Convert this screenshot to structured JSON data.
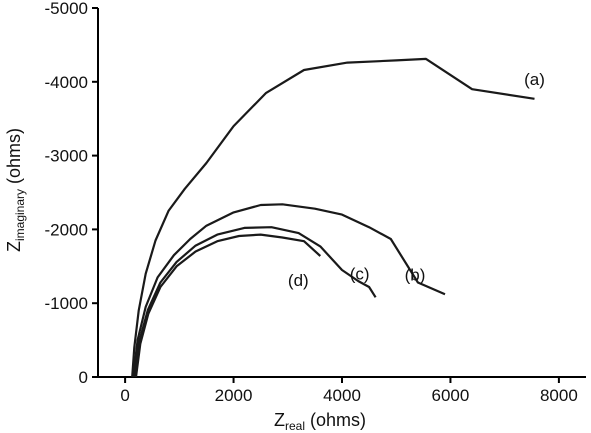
{
  "chart_data": {
    "type": "line",
    "xlabel": {
      "main": "Z",
      "sub": "real",
      "rest": " (ohms)"
    },
    "ylabel": {
      "main": "Z",
      "sub": "imaginary",
      "rest": " (ohms)"
    },
    "xlim": [
      -500,
      8500
    ],
    "ylim": [
      0,
      -5000
    ],
    "xticks": [
      0,
      2000,
      4000,
      6000,
      8000
    ],
    "xtick_labels": [
      "0",
      "2000",
      "4000",
      "6000",
      "8000"
    ],
    "yticks": [
      0,
      -1000,
      -2000,
      -3000,
      -4000,
      -5000
    ],
    "ytick_labels": [
      "0",
      "-1000",
      "-2000",
      "-3000",
      "-4000",
      "-5000"
    ],
    "grid": false,
    "legend": "none",
    "line_color": "#1a1a1a",
    "series": [
      {
        "name": "(a)",
        "x": [
          130,
          170,
          250,
          380,
          560,
          800,
          1100,
          1500,
          2000,
          2600,
          3300,
          4100,
          5000,
          5550,
          6400,
          7550
        ],
        "y": [
          0,
          -400,
          -900,
          -1400,
          -1850,
          -2250,
          -2550,
          -2900,
          -3400,
          -3850,
          -4160,
          -4260,
          -4290,
          -4310,
          -3900,
          -3770
        ]
      },
      {
        "name": "(b)",
        "x": [
          150,
          230,
          380,
          600,
          900,
          1200,
          1500,
          2000,
          2500,
          2900,
          3500,
          4000,
          4500,
          4900,
          5400,
          5900
        ],
        "y": [
          0,
          -500,
          -950,
          -1350,
          -1650,
          -1870,
          -2050,
          -2230,
          -2330,
          -2340,
          -2280,
          -2200,
          -2030,
          -1870,
          -1280,
          -1120
        ]
      },
      {
        "name": "(c)",
        "x": [
          180,
          260,
          420,
          650,
          950,
          1300,
          1700,
          2200,
          2700,
          3200,
          3600,
          4000,
          4300,
          4500,
          4620
        ],
        "y": [
          0,
          -480,
          -910,
          -1280,
          -1560,
          -1780,
          -1930,
          -2020,
          -2030,
          -1950,
          -1770,
          -1450,
          -1300,
          -1220,
          -1080
        ]
      },
      {
        "name": "(d)",
        "x": [
          200,
          280,
          430,
          650,
          950,
          1300,
          1700,
          2100,
          2500,
          2900,
          3300,
          3600
        ],
        "y": [
          0,
          -450,
          -860,
          -1220,
          -1500,
          -1700,
          -1840,
          -1910,
          -1930,
          -1890,
          -1840,
          -1640
        ]
      }
    ]
  }
}
